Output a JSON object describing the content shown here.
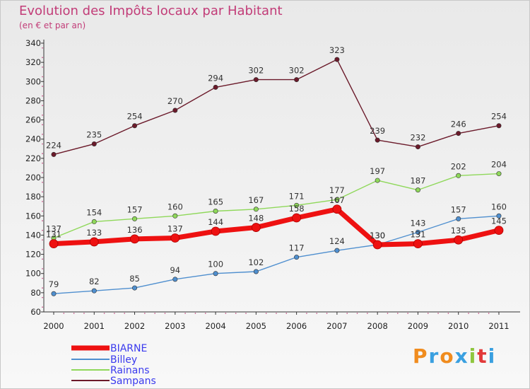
{
  "title": "Evolution des Impôts locaux par Habitant",
  "subtitle": "(en € et par an)",
  "logo_text": "Proxiti",
  "chart_data": {
    "type": "line",
    "title": "Evolution des Impôts locaux par Habitant",
    "subtitle": "(en € et par an)",
    "xlabel": "",
    "ylabel": "",
    "ylim": [
      60,
      340
    ],
    "ytick_step": 20,
    "grid": false,
    "legend_position": "bottom-left",
    "categories": [
      "2000",
      "2001",
      "2002",
      "2003",
      "2004",
      "2005",
      "2006",
      "2007",
      "2008",
      "2009",
      "2010",
      "2011"
    ],
    "series": [
      {
        "name": "BIARNE",
        "color": "#ee1111",
        "values": [
          131,
          133,
          136,
          137,
          144,
          148,
          158,
          167,
          130,
          131,
          135,
          145
        ]
      },
      {
        "name": "Billey",
        "color": "#4f8fcf",
        "values": [
          79,
          82,
          85,
          94,
          100,
          102,
          117,
          124,
          130,
          143,
          157,
          160
        ]
      },
      {
        "name": "Rainans",
        "color": "#8fd85a",
        "values": [
          137,
          154,
          157,
          160,
          165,
          167,
          171,
          177,
          197,
          187,
          202,
          204
        ]
      },
      {
        "name": "Sampans",
        "color": "#6b1a2a",
        "values": [
          224,
          235,
          254,
          270,
          294,
          302,
          302,
          323,
          239,
          232,
          246,
          254
        ]
      }
    ]
  }
}
